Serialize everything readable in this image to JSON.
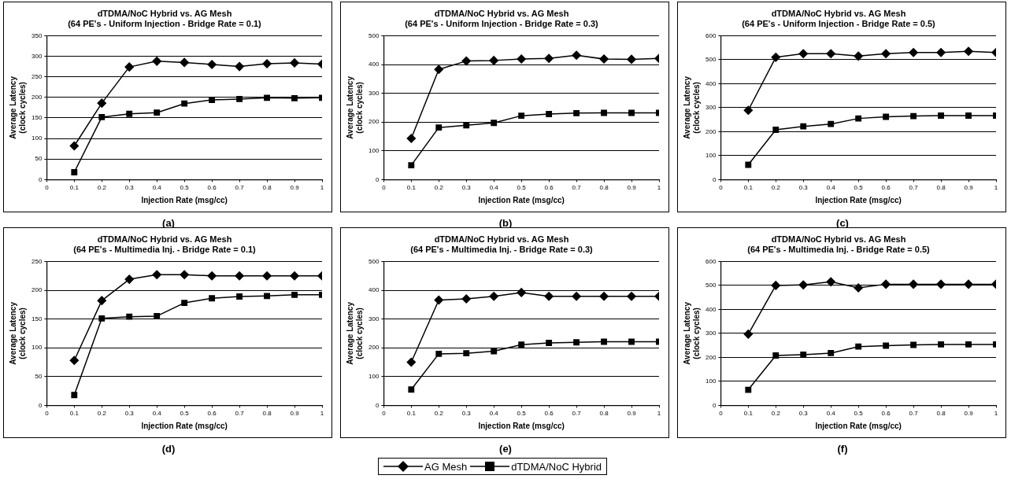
{
  "chart_data": [
    {
      "type": "line",
      "title": "dTDMA/NoC Hybrid vs. AG Mesh",
      "subtitle": "(64 PE's - Uniform Injection - Bridge Rate = 0.1)",
      "xlabel": "Injection Rate (msg/cc)",
      "ylabel": "Average Latency (clock cycles)",
      "annotations": [
        "(a)"
      ],
      "x": [
        0.1,
        0.2,
        0.3,
        0.4,
        0.5,
        0.6,
        0.7,
        0.8,
        0.9,
        1
      ],
      "series": [
        {
          "name": "AG Mesh",
          "color": "#000000",
          "marker": "diamond",
          "values": [
            82,
            186,
            274,
            288,
            285,
            280,
            275,
            282,
            284,
            281
          ]
        },
        {
          "name": "dTDMA/NoC Hybrid",
          "color": "#000000",
          "marker": "square",
          "values": [
            18,
            152,
            160,
            163,
            185,
            194,
            196,
            199,
            198,
            199
          ]
        }
      ],
      "xlim": [
        0,
        1
      ],
      "xticks": [
        0,
        0.1,
        0.2,
        0.3,
        0.4,
        0.5,
        0.6,
        0.7,
        0.8,
        0.9,
        1
      ],
      "ylim": [
        0,
        350
      ],
      "yticks": [
        0,
        50,
        100,
        150,
        200,
        250,
        300,
        350
      ],
      "grid": "y",
      "legend": "bottom",
      "line_style": "solid"
    },
    {
      "type": "line",
      "title": "dTDMA/NoC Hybrid vs. AG Mesh",
      "subtitle": "(64 PE's - Uniform Injection - Bridge Rate = 0.3)",
      "xlabel": "Injection Rate (msg/cc)",
      "ylabel": "Average Latency (clock cycles)",
      "annotations": [
        "(b)"
      ],
      "x": [
        0.1,
        0.2,
        0.3,
        0.4,
        0.5,
        0.6,
        0.7,
        0.8,
        0.9,
        1
      ],
      "series": [
        {
          "name": "AG Mesh",
          "color": "#000000",
          "marker": "diamond",
          "values": [
            143,
            383,
            412,
            414,
            419,
            421,
            432,
            419,
            418,
            421
          ]
        },
        {
          "name": "dTDMA/NoC Hybrid",
          "color": "#000000",
          "marker": "square",
          "values": [
            50,
            181,
            189,
            197,
            222,
            228,
            231,
            232,
            232,
            232
          ]
        }
      ],
      "xlim": [
        0,
        1
      ],
      "xticks": [
        0,
        0.1,
        0.2,
        0.3,
        0.4,
        0.5,
        0.6,
        0.7,
        0.8,
        0.9,
        1
      ],
      "ylim": [
        0,
        500
      ],
      "yticks": [
        0,
        100,
        200,
        300,
        400,
        500
      ],
      "grid": "y",
      "legend": "bottom",
      "line_style": "solid"
    },
    {
      "type": "line",
      "title": "dTDMA/NoC Hybrid vs. AG Mesh",
      "subtitle": "(64 PE's - Uniform Injection - Bridge Rate = 0.5)",
      "xlabel": "Injection Rate (msg/cc)",
      "ylabel": "Average Latency (clock cycles)",
      "annotations": [
        "(c)"
      ],
      "x": [
        0.1,
        0.2,
        0.3,
        0.4,
        0.5,
        0.6,
        0.7,
        0.8,
        0.9,
        1
      ],
      "series": [
        {
          "name": "AG Mesh",
          "color": "#000000",
          "marker": "diamond",
          "values": [
            289,
            510,
            525,
            525,
            515,
            525,
            530,
            530,
            535,
            530
          ]
        },
        {
          "name": "dTDMA/NoC Hybrid",
          "color": "#000000",
          "marker": "square",
          "values": [
            62,
            208,
            222,
            232,
            255,
            262,
            265,
            267,
            267,
            267
          ]
        }
      ],
      "xlim": [
        0,
        1
      ],
      "xticks": [
        0,
        0.1,
        0.2,
        0.3,
        0.4,
        0.5,
        0.6,
        0.7,
        0.8,
        0.9,
        1
      ],
      "ylim": [
        0,
        600
      ],
      "yticks": [
        0,
        100,
        200,
        300,
        400,
        500,
        600
      ],
      "grid": "y",
      "legend": "bottom",
      "line_style": "solid"
    },
    {
      "type": "line",
      "title": "dTDMA/NoC Hybrid vs. AG Mesh",
      "subtitle": "(64 PE's - Multimedia Inj. - Bridge Rate = 0.1)",
      "xlabel": "Injection Rate (msg/cc)",
      "ylabel": "Average Latency (clock cycles)",
      "annotations": [
        "(d)"
      ],
      "x": [
        0.1,
        0.2,
        0.3,
        0.4,
        0.5,
        0.6,
        0.7,
        0.8,
        0.9,
        1
      ],
      "series": [
        {
          "name": "AG Mesh",
          "color": "#000000",
          "marker": "diamond",
          "values": [
            78,
            182,
            219,
            227,
            227,
            225,
            225,
            225,
            225,
            225
          ]
        },
        {
          "name": "dTDMA/NoC Hybrid",
          "color": "#000000",
          "marker": "square",
          "values": [
            18,
            151,
            154,
            155,
            178,
            186,
            189,
            190,
            192,
            192
          ]
        }
      ],
      "xlim": [
        0,
        1
      ],
      "xticks": [
        0,
        0.1,
        0.2,
        0.3,
        0.4,
        0.5,
        0.6,
        0.7,
        0.8,
        0.9,
        1
      ],
      "ylim": [
        0,
        250
      ],
      "yticks": [
        0,
        50,
        100,
        150,
        200,
        250
      ],
      "grid": "y",
      "legend": "bottom",
      "line_style": "solid"
    },
    {
      "type": "line",
      "title": "dTDMA/NoC Hybrid vs. AG Mesh",
      "subtitle": "(64 PE's - Multimedia Inj. - Bridge Rate = 0.3)",
      "xlabel": "Injection Rate (msg/cc)",
      "ylabel": "Average Latency (clock cycles)",
      "annotations": [
        "(e)"
      ],
      "x": [
        0.1,
        0.2,
        0.3,
        0.4,
        0.5,
        0.6,
        0.7,
        0.8,
        0.9,
        1
      ],
      "series": [
        {
          "name": "AG Mesh",
          "color": "#000000",
          "marker": "diamond",
          "values": [
            150,
            366,
            370,
            379,
            392,
            379,
            379,
            379,
            379,
            379
          ]
        },
        {
          "name": "dTDMA/NoC Hybrid",
          "color": "#000000",
          "marker": "square",
          "values": [
            55,
            179,
            181,
            188,
            211,
            217,
            219,
            221,
            221,
            221
          ]
        }
      ],
      "xlim": [
        0,
        1
      ],
      "xticks": [
        0,
        0.1,
        0.2,
        0.3,
        0.4,
        0.5,
        0.6,
        0.7,
        0.8,
        0.9,
        1
      ],
      "ylim": [
        0,
        500
      ],
      "yticks": [
        0,
        100,
        200,
        300,
        400,
        500
      ],
      "grid": "y",
      "legend": "bottom",
      "line_style": "solid"
    },
    {
      "type": "line",
      "title": "dTDMA/NoC Hybrid vs. AG Mesh",
      "subtitle": "(64 PE's - Multimedia Inj. - Bridge Rate = 0.5)",
      "xlabel": "Injection Rate (msg/cc)",
      "ylabel": "Average Latency (clock cycles)",
      "annotations": [
        "(f)"
      ],
      "x": [
        0.1,
        0.2,
        0.3,
        0.4,
        0.5,
        0.6,
        0.7,
        0.8,
        0.9,
        1
      ],
      "series": [
        {
          "name": "AG Mesh",
          "color": "#000000",
          "marker": "diamond",
          "values": [
            297,
            500,
            502,
            515,
            490,
            505,
            505,
            505,
            505,
            505
          ]
        },
        {
          "name": "dTDMA/NoC Hybrid",
          "color": "#000000",
          "marker": "square",
          "values": [
            65,
            208,
            211,
            218,
            245,
            249,
            252,
            254,
            254,
            254
          ]
        }
      ],
      "xlim": [
        0,
        1
      ],
      "xticks": [
        0,
        0.1,
        0.2,
        0.3,
        0.4,
        0.5,
        0.6,
        0.7,
        0.8,
        0.9,
        1
      ],
      "ylim": [
        0,
        600
      ],
      "yticks": [
        0,
        100,
        200,
        300,
        400,
        500,
        600
      ],
      "grid": "y",
      "legend": "bottom",
      "line_style": "solid"
    }
  ]
}
